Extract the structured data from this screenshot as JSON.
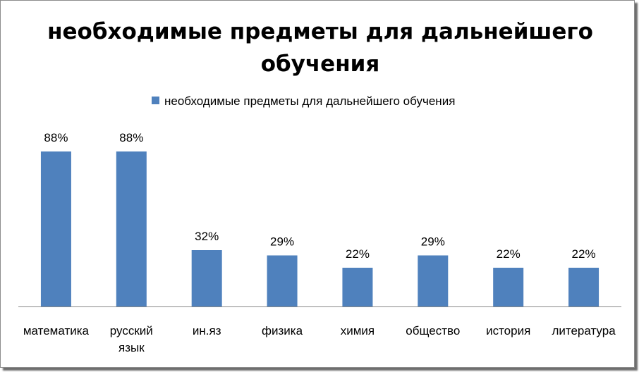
{
  "chart_data": {
    "type": "bar",
    "title_lines": [
      "необходимые предметы для дальнейшего",
      "обучения"
    ],
    "categories": [
      [
        "математика"
      ],
      [
        "русский",
        "язык"
      ],
      [
        "ин.яз"
      ],
      [
        "физика"
      ],
      [
        "химия"
      ],
      [
        "общество"
      ],
      [
        "история"
      ],
      [
        "литература"
      ]
    ],
    "series": [
      {
        "name": "необходимые предметы для дальнейшего обучения",
        "values": [
          88,
          88,
          32,
          29,
          22,
          29,
          22,
          22
        ],
        "labels": [
          "88%",
          "88%",
          "32%",
          "29%",
          "22%",
          "29%",
          "22%",
          "22%"
        ],
        "color": "#4f81bd"
      }
    ],
    "ylim": [
      0,
      100
    ],
    "legend_position": "top",
    "grid": false,
    "axis_color": "#888888"
  }
}
